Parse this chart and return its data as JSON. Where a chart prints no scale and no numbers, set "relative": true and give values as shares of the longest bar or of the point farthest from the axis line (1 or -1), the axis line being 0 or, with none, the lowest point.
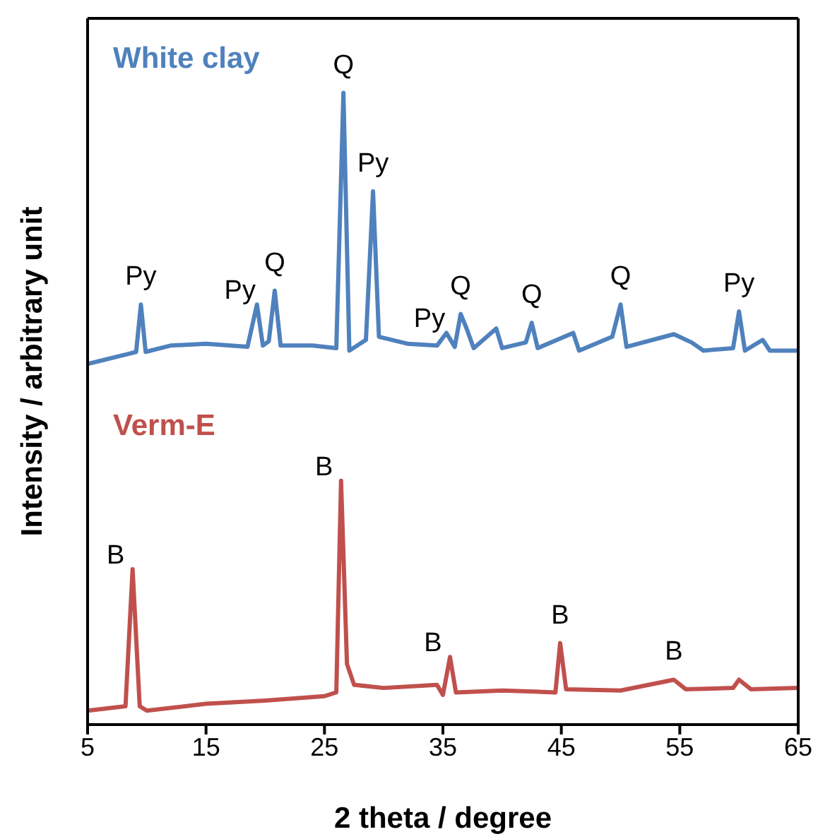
{
  "chart_data": {
    "type": "line",
    "relative": true,
    "xlabel": "2 theta / degree",
    "ylabel": "Intensity / arbitrary unit",
    "xlim": [
      5,
      65
    ],
    "xticks": [
      5,
      15,
      25,
      35,
      45,
      55,
      65
    ],
    "marker": "none",
    "line_style": "solid",
    "series": [
      {
        "name": "White clay",
        "color": "#4f81bd",
        "x": [
          5,
          8.5,
          9.1,
          9.5,
          9.9,
          12,
          15,
          18.5,
          19.3,
          19.8,
          20.3,
          20.8,
          21.3,
          24,
          26,
          26.6,
          27.1,
          28.5,
          29.1,
          29.6,
          32,
          34.5,
          35.3,
          36,
          36.5,
          37,
          37.6,
          39.5,
          40,
          42,
          42.5,
          43,
          46,
          46.5,
          49.3,
          50,
          50.5,
          54.5,
          56,
          57,
          59.5,
          60,
          60.5,
          62,
          62.6,
          65
        ],
        "values": [
          0.571,
          0.587,
          0.59,
          0.665,
          0.59,
          0.6,
          0.603,
          0.598,
          0.665,
          0.6,
          0.607,
          0.687,
          0.6,
          0.6,
          0.596,
          1.0,
          0.592,
          0.609,
          0.844,
          0.614,
          0.603,
          0.6,
          0.62,
          0.598,
          0.65,
          0.627,
          0.596,
          0.627,
          0.596,
          0.605,
          0.636,
          0.596,
          0.62,
          0.592,
          0.614,
          0.665,
          0.598,
          0.618,
          0.605,
          0.592,
          0.596,
          0.654,
          0.592,
          0.609,
          0.592,
          0.592
        ]
      },
      {
        "name": "Verm-E",
        "color": "#c0504d",
        "x": [
          5,
          8.2,
          8.8,
          9.4,
          10,
          15,
          20,
          25,
          26,
          26.4,
          26.9,
          27.5,
          30,
          34.5,
          35,
          35.6,
          36.1,
          40,
          44.5,
          44.9,
          45.4,
          50,
          54.5,
          55.5,
          59.5,
          60,
          61,
          65
        ],
        "values": [
          0.022,
          0.029,
          0.246,
          0.029,
          0.022,
          0.033,
          0.038,
          0.045,
          0.051,
          0.386,
          0.096,
          0.063,
          0.058,
          0.063,
          0.047,
          0.107,
          0.051,
          0.054,
          0.051,
          0.129,
          0.056,
          0.054,
          0.071,
          0.056,
          0.058,
          0.071,
          0.056,
          0.058
        ]
      }
    ],
    "annotations": [
      {
        "text": "Py",
        "x": 9.5,
        "y": 0.665
      },
      {
        "text": "Py",
        "x": 19.3,
        "y": 0.665
      },
      {
        "text": "Q",
        "x": 20.8,
        "y": 0.687
      },
      {
        "text": "Q",
        "x": 26.6,
        "y": 1.0
      },
      {
        "text": "Py",
        "x": 29.1,
        "y": 0.844
      },
      {
        "text": "Py",
        "x": 35.3,
        "y": 0.62
      },
      {
        "text": "Q",
        "x": 36.5,
        "y": 0.65
      },
      {
        "text": "Q",
        "x": 42.5,
        "y": 0.636
      },
      {
        "text": "Q",
        "x": 50,
        "y": 0.665
      },
      {
        "text": "Py",
        "x": 60,
        "y": 0.654
      },
      {
        "text": "B",
        "x": 8.8,
        "y": 0.246
      },
      {
        "text": "B",
        "x": 26.4,
        "y": 0.386
      },
      {
        "text": "B",
        "x": 35.6,
        "y": 0.107
      },
      {
        "text": "B",
        "x": 44.9,
        "y": 0.129
      },
      {
        "text": "B",
        "x": 54.5,
        "y": 0.071
      }
    ]
  }
}
